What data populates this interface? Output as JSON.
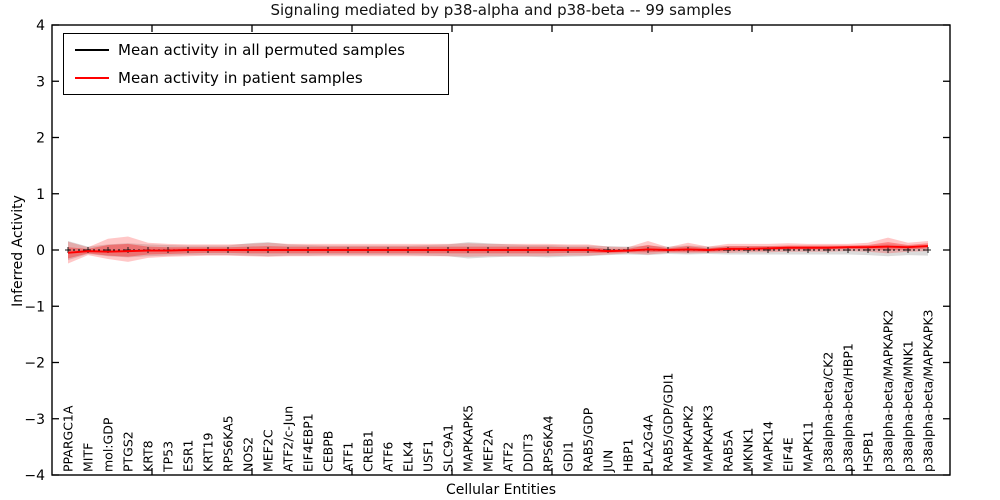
{
  "title": "Signaling mediated by p38-alpha and p38-beta -- 99 samples",
  "y_axis": {
    "title": "Inferred Activity",
    "tick_labels": [
      "4",
      "3",
      "2",
      "1",
      "0",
      "−1",
      "−2",
      "−3",
      "−4"
    ],
    "tick_values": [
      4,
      3,
      2,
      1,
      0,
      -1,
      -2,
      -3,
      -4
    ]
  },
  "x_axis": {
    "title": "Cellular Entities"
  },
  "legend": [
    {
      "label": "Mean activity in all permuted samples",
      "color": "#000000"
    },
    {
      "label": "Mean activity in patient samples",
      "color": "#ff0000"
    }
  ],
  "colors": {
    "frame": "#000000",
    "permuted_line": "#1a1a1a",
    "patient_line": "#ff0000",
    "patient_band": "#ff0000",
    "permuted_band": "#808080"
  },
  "chart_data": {
    "type": "line",
    "title": "Signaling mediated by p38-alpha and p38-beta -- 99 samples",
    "xlabel": "Cellular Entities",
    "ylabel": "Inferred Activity",
    "ylim": [
      -4,
      4
    ],
    "grid": false,
    "legend_position": "upper left",
    "categories": [
      "PPARGC1A",
      "MITF",
      "mol:GDP",
      "PTGS2",
      "KRT8",
      "TP53",
      "ESR1",
      "KRT19",
      "RPS6KA5",
      "NOS2",
      "MEF2C",
      "ATF2/c-Jun",
      "EIF4EBP1",
      "CEBPB",
      "ATF1",
      "CREB1",
      "ATF6",
      "ELK4",
      "USF1",
      "SLC9A1",
      "MAPKAPK5",
      "MEF2A",
      "ATF2",
      "DDIT3",
      "RPS6KA4",
      "GDI1",
      "RAB5/GDP",
      "JUN",
      "HBP1",
      "PLA2G4A",
      "RAB5/GDP/GDI1",
      "MAPKAPK2",
      "MAPKAPK3",
      "RAB5A",
      "MKNK1",
      "MAPK14",
      "EIF4E",
      "MAPK11",
      "p38alpha-beta/CK2",
      "p38alpha-beta/HBP1",
      "HSPB1",
      "p38alpha-beta/MAPKAPK2",
      "p38alpha-beta/MNK1",
      "p38alpha-beta/MAPKAPK3"
    ],
    "series": [
      {
        "name": "Mean activity in all permuted samples",
        "values": [
          0,
          0,
          0,
          0,
          0,
          0,
          0,
          0,
          0,
          0,
          0,
          0,
          0,
          0,
          0,
          0,
          0,
          0,
          0,
          0,
          0,
          0,
          0,
          0,
          0,
          0,
          0,
          0,
          0,
          0,
          0,
          0,
          0,
          0,
          0,
          0,
          0,
          0,
          0,
          0,
          0,
          0,
          0,
          0
        ]
      },
      {
        "name": "Mean activity in patient samples",
        "values": [
          -0.05,
          -0.02,
          -0.03,
          -0.02,
          -0.01,
          -0.01,
          0,
          0,
          0,
          0,
          0,
          0,
          0,
          0,
          0,
          0,
          0,
          0,
          0,
          0,
          0,
          0,
          0,
          0,
          0,
          0,
          0,
          -0.02,
          -0.01,
          0.01,
          0,
          0.01,
          0,
          0.02,
          0.02,
          0.03,
          0.04,
          0.04,
          0.04,
          0.05,
          0.05,
          0.06,
          0.05,
          0.07
        ]
      }
    ],
    "patient_band_outer": {
      "upper": [
        0.15,
        0.05,
        0.2,
        0.24,
        0.13,
        0.11,
        0.1,
        0.1,
        0.1,
        0.11,
        0.13,
        0.11,
        0.11,
        0.11,
        0.11,
        0.11,
        0.11,
        0.11,
        0.11,
        0.11,
        0.12,
        0.11,
        0.11,
        0.11,
        0.11,
        0.1,
        0.1,
        0.06,
        0.05,
        0.16,
        0.05,
        0.13,
        0.06,
        0.11,
        0.11,
        0.11,
        0.12,
        0.11,
        0.11,
        0.11,
        0.13,
        0.22,
        0.13,
        0.16
      ],
      "lower": [
        -0.24,
        -0.09,
        -0.16,
        -0.21,
        -0.14,
        -0.12,
        -0.11,
        -0.1,
        -0.1,
        -0.11,
        -0.12,
        -0.11,
        -0.11,
        -0.11,
        -0.11,
        -0.11,
        -0.11,
        -0.11,
        -0.11,
        -0.11,
        -0.12,
        -0.11,
        -0.11,
        -0.11,
        -0.11,
        -0.1,
        -0.1,
        -0.08,
        -0.06,
        -0.08,
        -0.05,
        -0.06,
        -0.05,
        -0.05,
        -0.04,
        -0.04,
        -0.03,
        -0.03,
        -0.03,
        -0.02,
        -0.03,
        -0.06,
        -0.03,
        -0.02
      ]
    },
    "patient_band_inner": {
      "upper": [
        0.05,
        0.02,
        0.09,
        0.11,
        0.06,
        0.05,
        0.05,
        0.05,
        0.05,
        0.06,
        0.07,
        0.06,
        0.06,
        0.06,
        0.06,
        0.06,
        0.06,
        0.06,
        0.06,
        0.06,
        0.06,
        0.06,
        0.06,
        0.06,
        0.06,
        0.05,
        0.05,
        0.02,
        0.02,
        0.09,
        0.03,
        0.07,
        0.03,
        0.07,
        0.07,
        0.07,
        0.08,
        0.08,
        0.08,
        0.08,
        0.09,
        0.14,
        0.09,
        0.12
      ],
      "lower": [
        -0.15,
        -0.06,
        -0.1,
        -0.12,
        -0.08,
        -0.07,
        -0.06,
        -0.05,
        -0.05,
        -0.06,
        -0.06,
        -0.06,
        -0.06,
        -0.06,
        -0.06,
        -0.06,
        -0.06,
        -0.06,
        -0.06,
        -0.06,
        -0.06,
        -0.06,
        -0.06,
        -0.06,
        -0.06,
        -0.05,
        -0.05,
        -0.05,
        -0.04,
        -0.04,
        -0.03,
        -0.03,
        -0.03,
        -0.02,
        -0.01,
        -0.01,
        0.01,
        0.01,
        0.01,
        0.02,
        0.01,
        0.0,
        0.01,
        0.03
      ]
    },
    "permuted_band": {
      "upper": [
        0.16,
        0.06,
        0.1,
        0.12,
        0.1,
        0.09,
        0.08,
        0.08,
        0.08,
        0.12,
        0.14,
        0.1,
        0.09,
        0.08,
        0.08,
        0.08,
        0.08,
        0.08,
        0.09,
        0.1,
        0.14,
        0.12,
        0.1,
        0.09,
        0.09,
        0.08,
        0.08,
        0.07,
        0.06,
        0.08,
        0.06,
        0.08,
        0.06,
        0.07,
        0.07,
        0.07,
        0.07,
        0.07,
        0.07,
        0.07,
        0.08,
        0.1,
        0.08,
        0.09
      ],
      "lower": [
        -0.18,
        -0.07,
        -0.11,
        -0.13,
        -0.11,
        -0.1,
        -0.09,
        -0.09,
        -0.09,
        -0.1,
        -0.11,
        -0.1,
        -0.1,
        -0.09,
        -0.09,
        -0.09,
        -0.09,
        -0.09,
        -0.1,
        -0.11,
        -0.15,
        -0.13,
        -0.12,
        -0.12,
        -0.13,
        -0.12,
        -0.11,
        -0.09,
        -0.08,
        -0.09,
        -0.07,
        -0.08,
        -0.07,
        -0.08,
        -0.08,
        -0.08,
        -0.08,
        -0.08,
        -0.08,
        -0.08,
        -0.09,
        -0.11,
        -0.09,
        -0.1
      ]
    }
  }
}
